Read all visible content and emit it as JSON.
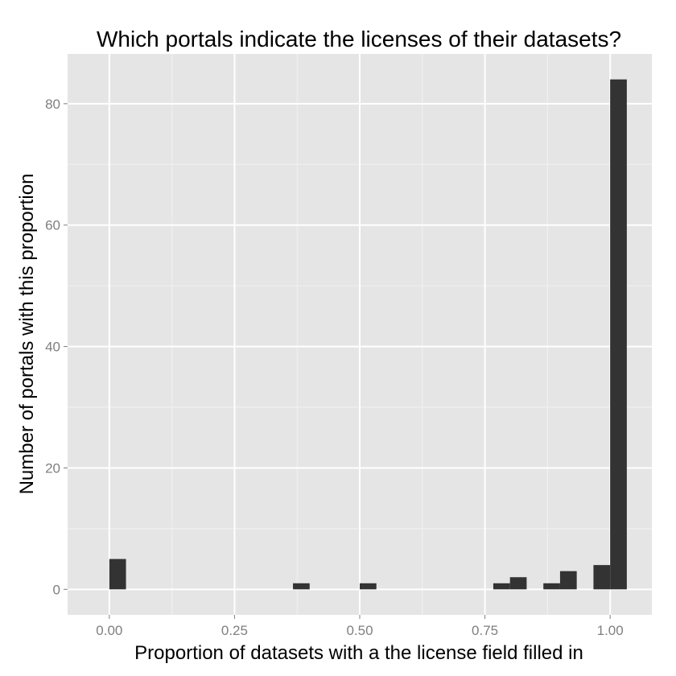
{
  "chart_data": {
    "type": "bar",
    "title": "Which portals indicate the licenses of their datasets?",
    "xlabel": "Proportion of datasets with a the license field filled in",
    "ylabel": "Number of portals with this proportion",
    "xlim": [
      -0.0833,
      1.0833
    ],
    "ylim": [
      -4.2,
      88.2
    ],
    "x_ticks": [
      0.0,
      0.25,
      0.5,
      0.75,
      1.0
    ],
    "x_tick_labels": [
      "0.00",
      "0.25",
      "0.50",
      "0.75",
      "1.00"
    ],
    "y_ticks": [
      0,
      20,
      40,
      60,
      80
    ],
    "y_tick_labels": [
      "0",
      "20",
      "40",
      "60",
      "80"
    ],
    "bin_width": 0.0333,
    "bins": [
      {
        "x_start": 0.0,
        "x_end": 0.0333,
        "count": 5
      },
      {
        "x_start": 0.3667,
        "x_end": 0.4,
        "count": 1
      },
      {
        "x_start": 0.5,
        "x_end": 0.5333,
        "count": 1
      },
      {
        "x_start": 0.7667,
        "x_end": 0.8,
        "count": 1
      },
      {
        "x_start": 0.8,
        "x_end": 0.8333,
        "count": 2
      },
      {
        "x_start": 0.8667,
        "x_end": 0.9,
        "count": 1
      },
      {
        "x_start": 0.9,
        "x_end": 0.9333,
        "count": 3
      },
      {
        "x_start": 0.9667,
        "x_end": 1.0,
        "count": 4
      },
      {
        "x_start": 1.0,
        "x_end": 1.0333,
        "count": 84
      }
    ],
    "grid": true,
    "legend": "none",
    "colors": {
      "panel": "#e5e5e5",
      "grid_major": "#ffffff",
      "grid_minor": "#f2f2f2",
      "bar": "#333333",
      "tick": "#7f7f7f"
    }
  }
}
